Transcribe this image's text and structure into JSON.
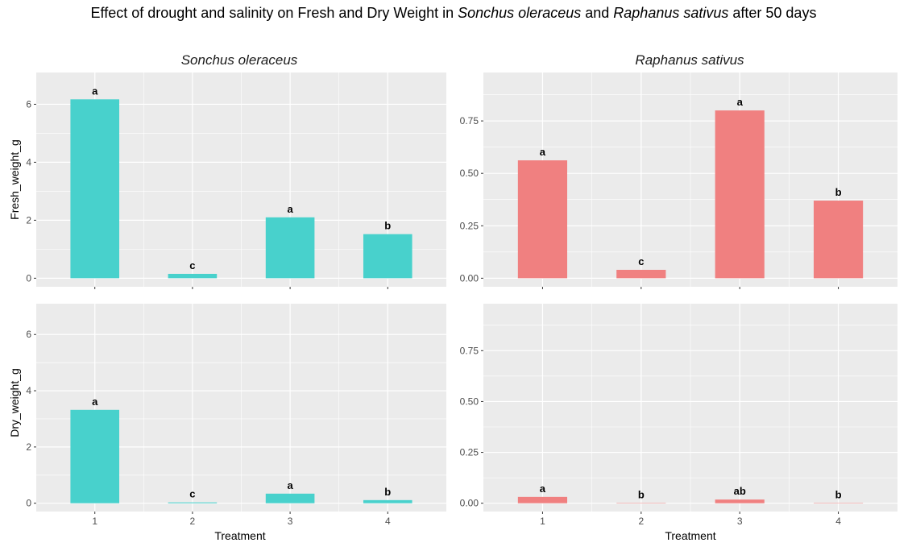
{
  "title": {
    "prefix": "Effect of drought and salinity on Fresh and Dry Weight in ",
    "species1": "Sonchus oleraceus",
    "middle": " and ",
    "species2": "Raphanus sativus",
    "suffix": " after 50 days"
  },
  "chart_data": [
    {
      "type": "bar",
      "facet": "Sonchus oleraceus",
      "title": "Sonchus oleraceus",
      "xlabel": "",
      "ylabel": "Fresh_weight_g",
      "categories": [
        "1",
        "2",
        "3",
        "4"
      ],
      "values": [
        6.17,
        0.15,
        2.1,
        1.52
      ],
      "labels": [
        "a",
        "c",
        "a",
        "b"
      ],
      "ylim": [
        0,
        6.8
      ],
      "yticks": [
        0,
        2,
        4,
        6
      ],
      "ytick_labels": [
        "0",
        "2",
        "4",
        "6"
      ],
      "color": "#48D1CC",
      "grid": true
    },
    {
      "type": "bar",
      "facet": "Raphanus sativus",
      "title": "Raphanus sativus",
      "xlabel": "",
      "ylabel": "",
      "categories": [
        "1",
        "2",
        "3",
        "4"
      ],
      "values": [
        0.562,
        0.04,
        0.8,
        0.37
      ],
      "labels": [
        "a",
        "c",
        "a",
        "b"
      ],
      "ylim": [
        0,
        0.94
      ],
      "yticks": [
        0,
        0.25,
        0.5,
        0.75
      ],
      "ytick_labels": [
        "0.00",
        "0.25",
        "0.50",
        "0.75"
      ],
      "color": "#F08080",
      "grid": true
    },
    {
      "type": "bar",
      "facet": "Sonchus oleraceus",
      "title": "",
      "xlabel": "Treatment",
      "ylabel": "Dry_weight_g",
      "categories": [
        "1",
        "2",
        "3",
        "4"
      ],
      "values": [
        3.32,
        0.03,
        0.34,
        0.11
      ],
      "labels": [
        "a",
        "c",
        "a",
        "b"
      ],
      "ylim": [
        0,
        6.8
      ],
      "yticks": [
        0,
        2,
        4,
        6
      ],
      "ytick_labels": [
        "0",
        "2",
        "4",
        "6"
      ],
      "color": "#48D1CC",
      "grid": true
    },
    {
      "type": "bar",
      "facet": "Raphanus sativus",
      "title": "",
      "xlabel": "Treatment",
      "ylabel": "",
      "categories": [
        "1",
        "2",
        "3",
        "4"
      ],
      "values": [
        0.031,
        0.001,
        0.018,
        0.001
      ],
      "labels": [
        "a",
        "b",
        "ab",
        "b"
      ],
      "ylim": [
        0,
        0.94
      ],
      "yticks": [
        0,
        0.25,
        0.5,
        0.75
      ],
      "ytick_labels": [
        "0.00",
        "0.25",
        "0.50",
        "0.75"
      ],
      "color": "#F08080",
      "grid": true
    }
  ]
}
